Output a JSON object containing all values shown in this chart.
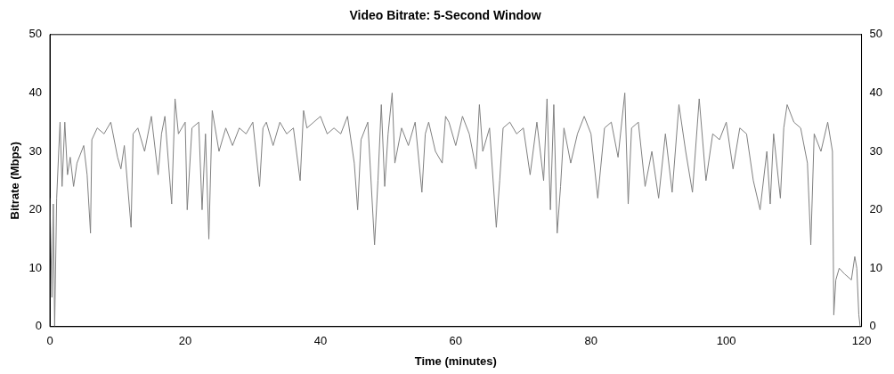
{
  "chart_data": {
    "type": "line",
    "title": "Video Bitrate: 5-Second Window",
    "xlabel": "Time (minutes)",
    "ylabel": "Bitrate (Mbps)",
    "xlim": [
      0,
      120
    ],
    "xticks": [
      0,
      20,
      40,
      60,
      80,
      100,
      120
    ],
    "ylim": [
      0,
      50
    ],
    "yticks": [
      0,
      10,
      20,
      30,
      40,
      50
    ],
    "y2lim": [
      0,
      50
    ],
    "y2ticks": [
      0,
      10,
      20,
      30,
      40,
      50
    ],
    "grid": false,
    "legend": false,
    "marker": "none",
    "line_style": "solid",
    "series": [
      {
        "color": "#808080",
        "x": [
          0,
          0.3,
          0.5,
          0.7,
          1,
          1.3,
          1.5,
          1.8,
          2.2,
          2.6,
          3,
          3.5,
          4,
          5,
          5.5,
          6,
          6.2,
          7,
          8,
          9,
          10,
          10.5,
          11,
          12,
          12.3,
          13,
          14,
          15,
          16,
          16.5,
          17,
          18,
          18.5,
          19,
          20,
          20.3,
          21,
          22,
          22.5,
          23,
          23.5,
          24,
          25,
          26,
          27,
          28,
          29,
          30,
          31,
          31.5,
          32,
          33,
          34,
          35,
          36,
          37,
          37.5,
          38,
          39,
          40,
          41,
          42,
          43,
          44,
          45,
          45.5,
          46,
          47,
          48,
          48.5,
          49,
          49.5,
          50,
          50.6,
          51,
          52,
          53,
          54,
          55,
          55.5,
          56,
          57,
          58,
          58.5,
          59,
          60,
          61,
          62,
          63,
          63.5,
          64,
          65,
          66,
          66.5,
          67,
          68,
          69,
          70,
          71,
          72,
          73,
          73.5,
          74,
          74.5,
          75,
          75.5,
          76,
          77,
          78,
          79,
          80,
          81,
          82,
          83,
          84,
          85,
          85.5,
          86,
          87,
          88,
          89,
          90,
          91,
          92,
          93,
          94,
          95,
          96,
          97,
          98,
          99,
          100,
          101,
          102,
          103,
          104,
          105,
          106,
          106.5,
          107,
          108,
          108.5,
          109,
          110,
          111,
          112,
          112.5,
          113,
          114,
          115,
          115.7,
          115.9,
          116.2,
          116.7,
          117.5,
          118.5,
          119,
          119.3,
          119.6,
          119.8
        ],
        "values": [
          22,
          5,
          21,
          0,
          22,
          30,
          35,
          24,
          35,
          26,
          29,
          24,
          28,
          31,
          26,
          16,
          32,
          34,
          33,
          35,
          29,
          27,
          31,
          17,
          33,
          34,
          30,
          36,
          26,
          33,
          36,
          21,
          39,
          33,
          35,
          20,
          34,
          35,
          20,
          33,
          15,
          37,
          30,
          34,
          31,
          34,
          33,
          35,
          24,
          34,
          35,
          31,
          35,
          33,
          34,
          25,
          37,
          34,
          35,
          36,
          33,
          34,
          33,
          36,
          28,
          20,
          32,
          35,
          14,
          25,
          38,
          24,
          33,
          40,
          28,
          34,
          31,
          35,
          23,
          33,
          35,
          30,
          28,
          36,
          35,
          31,
          36,
          33,
          27,
          38,
          30,
          34,
          17,
          25,
          34,
          35,
          33,
          34,
          26,
          35,
          25,
          39,
          20,
          38,
          16,
          24,
          34,
          28,
          33,
          36,
          33,
          22,
          34,
          35,
          29,
          40,
          21,
          34,
          35,
          24,
          30,
          22,
          33,
          23,
          38,
          30,
          23,
          39,
          25,
          33,
          32,
          35,
          27,
          34,
          33,
          25,
          20,
          30,
          21,
          33,
          22,
          34,
          38,
          35,
          34,
          28,
          14,
          33,
          30,
          35,
          30,
          2,
          8,
          10,
          9,
          8,
          12,
          10,
          2,
          0
        ]
      }
    ]
  }
}
